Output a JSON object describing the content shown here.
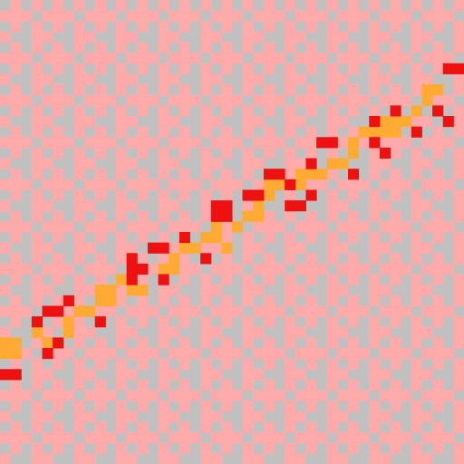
{
  "colors": {
    "gray": "#c0c0c0",
    "pink": "#ffaaaa",
    "orange": "#ffaa33",
    "red": "#ee1111"
  },
  "grid": {
    "cols": 44,
    "rows": 44
  },
  "path": {
    "orange_cells": [
      [
        0,
        32
      ],
      [
        1,
        32
      ],
      [
        0,
        33
      ],
      [
        1,
        33
      ],
      [
        3,
        31
      ],
      [
        4,
        32
      ],
      [
        6,
        30
      ],
      [
        6,
        31
      ],
      [
        7,
        29
      ],
      [
        8,
        29
      ],
      [
        9,
        28
      ],
      [
        10,
        28
      ],
      [
        9,
        27
      ],
      [
        10,
        27
      ],
      [
        11,
        26
      ],
      [
        12,
        27
      ],
      [
        13,
        27
      ],
      [
        15,
        25
      ],
      [
        16,
        24
      ],
      [
        16,
        25
      ],
      [
        17,
        23
      ],
      [
        18,
        23
      ],
      [
        19,
        22
      ],
      [
        20,
        21
      ],
      [
        20,
        22
      ],
      [
        21,
        23
      ],
      [
        22,
        21
      ],
      [
        23,
        20
      ],
      [
        24,
        19
      ],
      [
        24,
        20
      ],
      [
        25,
        18
      ],
      [
        26,
        17
      ],
      [
        25,
        17
      ],
      [
        28,
        16
      ],
      [
        28,
        17
      ],
      [
        29,
        16
      ],
      [
        30,
        16
      ],
      [
        31,
        15
      ],
      [
        32,
        15
      ],
      [
        33,
        13
      ],
      [
        33,
        14
      ],
      [
        34,
        12
      ],
      [
        35,
        12
      ],
      [
        36,
        11
      ],
      [
        37,
        11
      ],
      [
        36,
        12
      ],
      [
        37,
        12
      ],
      [
        38,
        11
      ],
      [
        39,
        10
      ],
      [
        40,
        9
      ],
      [
        41,
        8
      ],
      [
        40,
        8
      ]
    ],
    "red_cells": [
      [
        0,
        35
      ],
      [
        1,
        35
      ],
      [
        3,
        30
      ],
      [
        4,
        29
      ],
      [
        5,
        29
      ],
      [
        6,
        28
      ],
      [
        4,
        33
      ],
      [
        5,
        32
      ],
      [
        9,
        30
      ],
      [
        12,
        25
      ],
      [
        13,
        25
      ],
      [
        12,
        26
      ],
      [
        14,
        23
      ],
      [
        15,
        23
      ],
      [
        12,
        24
      ],
      [
        15,
        26
      ],
      [
        19,
        24
      ],
      [
        17,
        22
      ],
      [
        20,
        20
      ],
      [
        21,
        20
      ],
      [
        20,
        19
      ],
      [
        21,
        19
      ],
      [
        23,
        18
      ],
      [
        24,
        18
      ],
      [
        23,
        18
      ],
      [
        25,
        16
      ],
      [
        26,
        16
      ],
      [
        27,
        19
      ],
      [
        28,
        19
      ],
      [
        29,
        18
      ],
      [
        27,
        17
      ],
      [
        29,
        15
      ],
      [
        30,
        13
      ],
      [
        31,
        13
      ],
      [
        33,
        16
      ],
      [
        35,
        13
      ],
      [
        35,
        11
      ],
      [
        36,
        14
      ],
      [
        37,
        10
      ],
      [
        39,
        12
      ],
      [
        42,
        11
      ],
      [
        41,
        10
      ],
      [
        42,
        6
      ],
      [
        43,
        6
      ]
    ]
  }
}
